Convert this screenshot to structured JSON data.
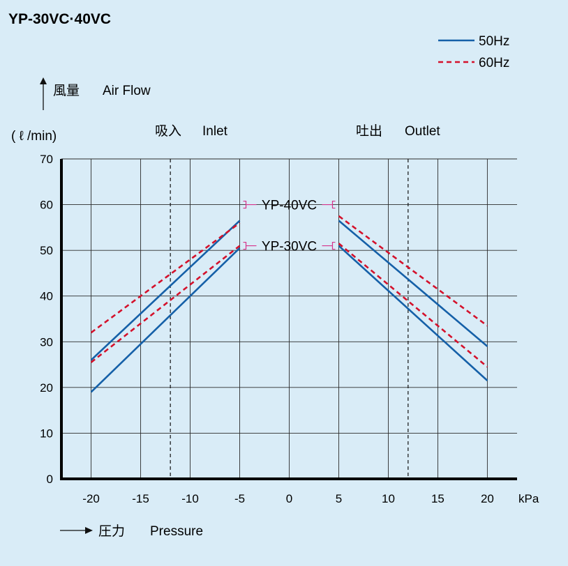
{
  "title": "YP-30VC·40VC",
  "legend": {
    "items": [
      {
        "label": "50Hz",
        "color": "#1560a8",
        "dash": false
      },
      {
        "label": "60Hz",
        "color": "#d4112b",
        "dash": true
      }
    ]
  },
  "labels": {
    "y_title_jp": "風量",
    "y_title_en": "Air Flow",
    "y_unit": "( ℓ /min)",
    "inlet_jp": "吸入",
    "inlet_en": "Inlet",
    "outlet_jp": "吐出",
    "outlet_en": "Outlet",
    "x_title_jp": "圧力",
    "x_title_en": "Pressure",
    "x_unit": "kPa"
  },
  "chart_data": {
    "type": "line",
    "title": "YP-30VC·40VC",
    "xlabel": "圧力 Pressure (kPa)",
    "ylabel": "風量 Air Flow (ℓ/min)",
    "xlim": [
      -23,
      23
    ],
    "ylim": [
      0,
      70
    ],
    "x_ticks": [
      -20,
      -15,
      -10,
      -5,
      0,
      5,
      10,
      15,
      20
    ],
    "y_ticks": [
      0,
      10,
      20,
      30,
      40,
      50,
      60,
      70
    ],
    "x_tick_labels": [
      "-20",
      "-15",
      "-10",
      "-5",
      "0",
      "5",
      "10",
      "15",
      "20"
    ],
    "y_tick_labels": [
      "0",
      "10",
      "20",
      "30",
      "40",
      "50",
      "60",
      "70"
    ],
    "dashed_guides_x": [
      -12,
      12
    ],
    "grid": true,
    "legend_position": "top-right",
    "model_labels": [
      {
        "text": "YP-40VC",
        "value": 60
      },
      {
        "text": "YP-30VC",
        "value": 51
      }
    ],
    "series": [
      {
        "model": "YP-40VC",
        "freq": "50Hz",
        "side": "inlet",
        "x": [
          -20,
          -5
        ],
        "y": [
          26,
          56.5
        ]
      },
      {
        "model": "YP-40VC",
        "freq": "60Hz",
        "side": "inlet",
        "x": [
          -20,
          -5
        ],
        "y": [
          32,
          56
        ]
      },
      {
        "model": "YP-30VC",
        "freq": "50Hz",
        "side": "inlet",
        "x": [
          -20,
          -5
        ],
        "y": [
          19,
          50.5
        ]
      },
      {
        "model": "YP-30VC",
        "freq": "60Hz",
        "side": "inlet",
        "x": [
          -20,
          -5
        ],
        "y": [
          25.5,
          51
        ]
      },
      {
        "model": "YP-40VC",
        "freq": "50Hz",
        "side": "outlet",
        "x": [
          5,
          20
        ],
        "y": [
          56.5,
          29
        ]
      },
      {
        "model": "YP-40VC",
        "freq": "60Hz",
        "side": "outlet",
        "x": [
          5,
          20
        ],
        "y": [
          57.5,
          33.5
        ]
      },
      {
        "model": "YP-30VC",
        "freq": "50Hz",
        "side": "outlet",
        "x": [
          5,
          20
        ],
        "y": [
          51,
          21.5
        ]
      },
      {
        "model": "YP-30VC",
        "freq": "60Hz",
        "side": "outlet",
        "x": [
          5,
          20
        ],
        "y": [
          51.5,
          24.5
        ]
      }
    ]
  }
}
